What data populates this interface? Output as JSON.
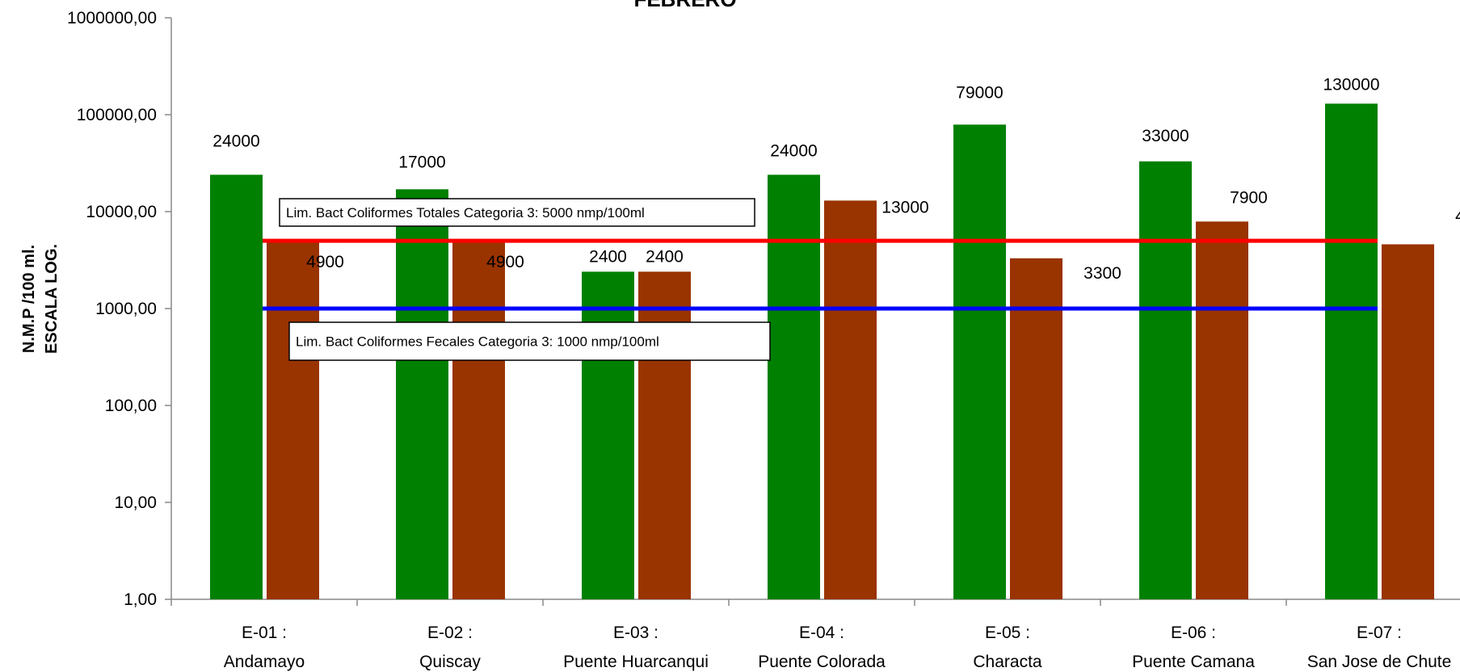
{
  "chart_data": {
    "type": "bar",
    "title": "FEBRERO",
    "ylabel_lines": [
      "N.M.P /100 ml.",
      "ESCALA LOG."
    ],
    "y_scale": "log",
    "ylim": [
      1,
      1000000
    ],
    "yticks": [
      {
        "value": 1,
        "label": "1,00"
      },
      {
        "value": 10,
        "label": "10,00"
      },
      {
        "value": 100,
        "label": "100,00"
      },
      {
        "value": 1000,
        "label": "1000,00"
      },
      {
        "value": 10000,
        "label": "10000,00"
      },
      {
        "value": 100000,
        "label": "100000,00"
      },
      {
        "value": 1000000,
        "label": "1000000,00"
      }
    ],
    "categories": [
      {
        "code": "E-01 :",
        "name": "Andamayo"
      },
      {
        "code": "E-02 :",
        "name": "Quiscay"
      },
      {
        "code": "E-03 :",
        "name": "Puente Huarcanqui"
      },
      {
        "code": "E-04 :",
        "name": "Puente Colorada"
      },
      {
        "code": "E-05 :",
        "name": "Characta"
      },
      {
        "code": "E-06 :",
        "name": "Puente Camana"
      },
      {
        "code": "E-07 :",
        "name": "San Jose de Chute"
      }
    ],
    "series": [
      {
        "color": "#008000",
        "values": [
          24000,
          17000,
          2400,
          24000,
          79000,
          33000,
          130000
        ]
      },
      {
        "color": "#993300",
        "values": [
          4900,
          4900,
          2400,
          13000,
          3300,
          7900,
          4600
        ]
      }
    ],
    "reference_lines": [
      {
        "value": 5000,
        "color": "#ff0000",
        "label": "Lim. Bact Coliformes Totales Categoria 3: 5000 nmp/100ml"
      },
      {
        "value": 1000,
        "color": "#0000ff",
        "label": "Lim. Bact Coliformes Fecales Categoria 3: 1000  nmp/100ml"
      }
    ],
    "grid": false,
    "legend": "none"
  }
}
